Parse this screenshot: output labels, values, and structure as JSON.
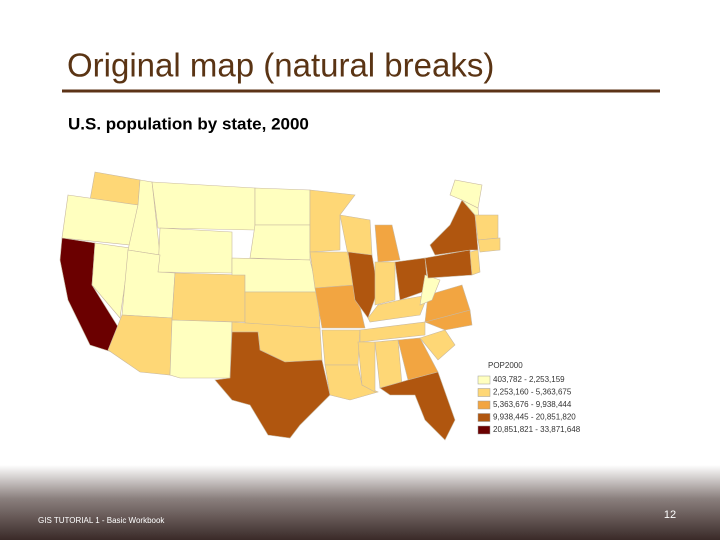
{
  "header": {
    "title": "Original map (natural breaks)",
    "subtitle": "U.S. population by state, 2000"
  },
  "legend": {
    "title": "POP2000",
    "classes": [
      {
        "label": "403,782 - 2,253,159",
        "color": "#ffffbf"
      },
      {
        "label": "2,253,160 - 5,363,675",
        "color": "#fed776"
      },
      {
        "label": "5,363,676 - 9,938,444",
        "color": "#f2a541"
      },
      {
        "label": "9,938,445 - 20,851,820",
        "color": "#b0560f"
      },
      {
        "label": "20,851,821 - 33,871,648",
        "color": "#6b0000"
      }
    ]
  },
  "footer": {
    "text": "GIS TUTORIAL 1 - Basic Workbook",
    "page": "12"
  }
}
